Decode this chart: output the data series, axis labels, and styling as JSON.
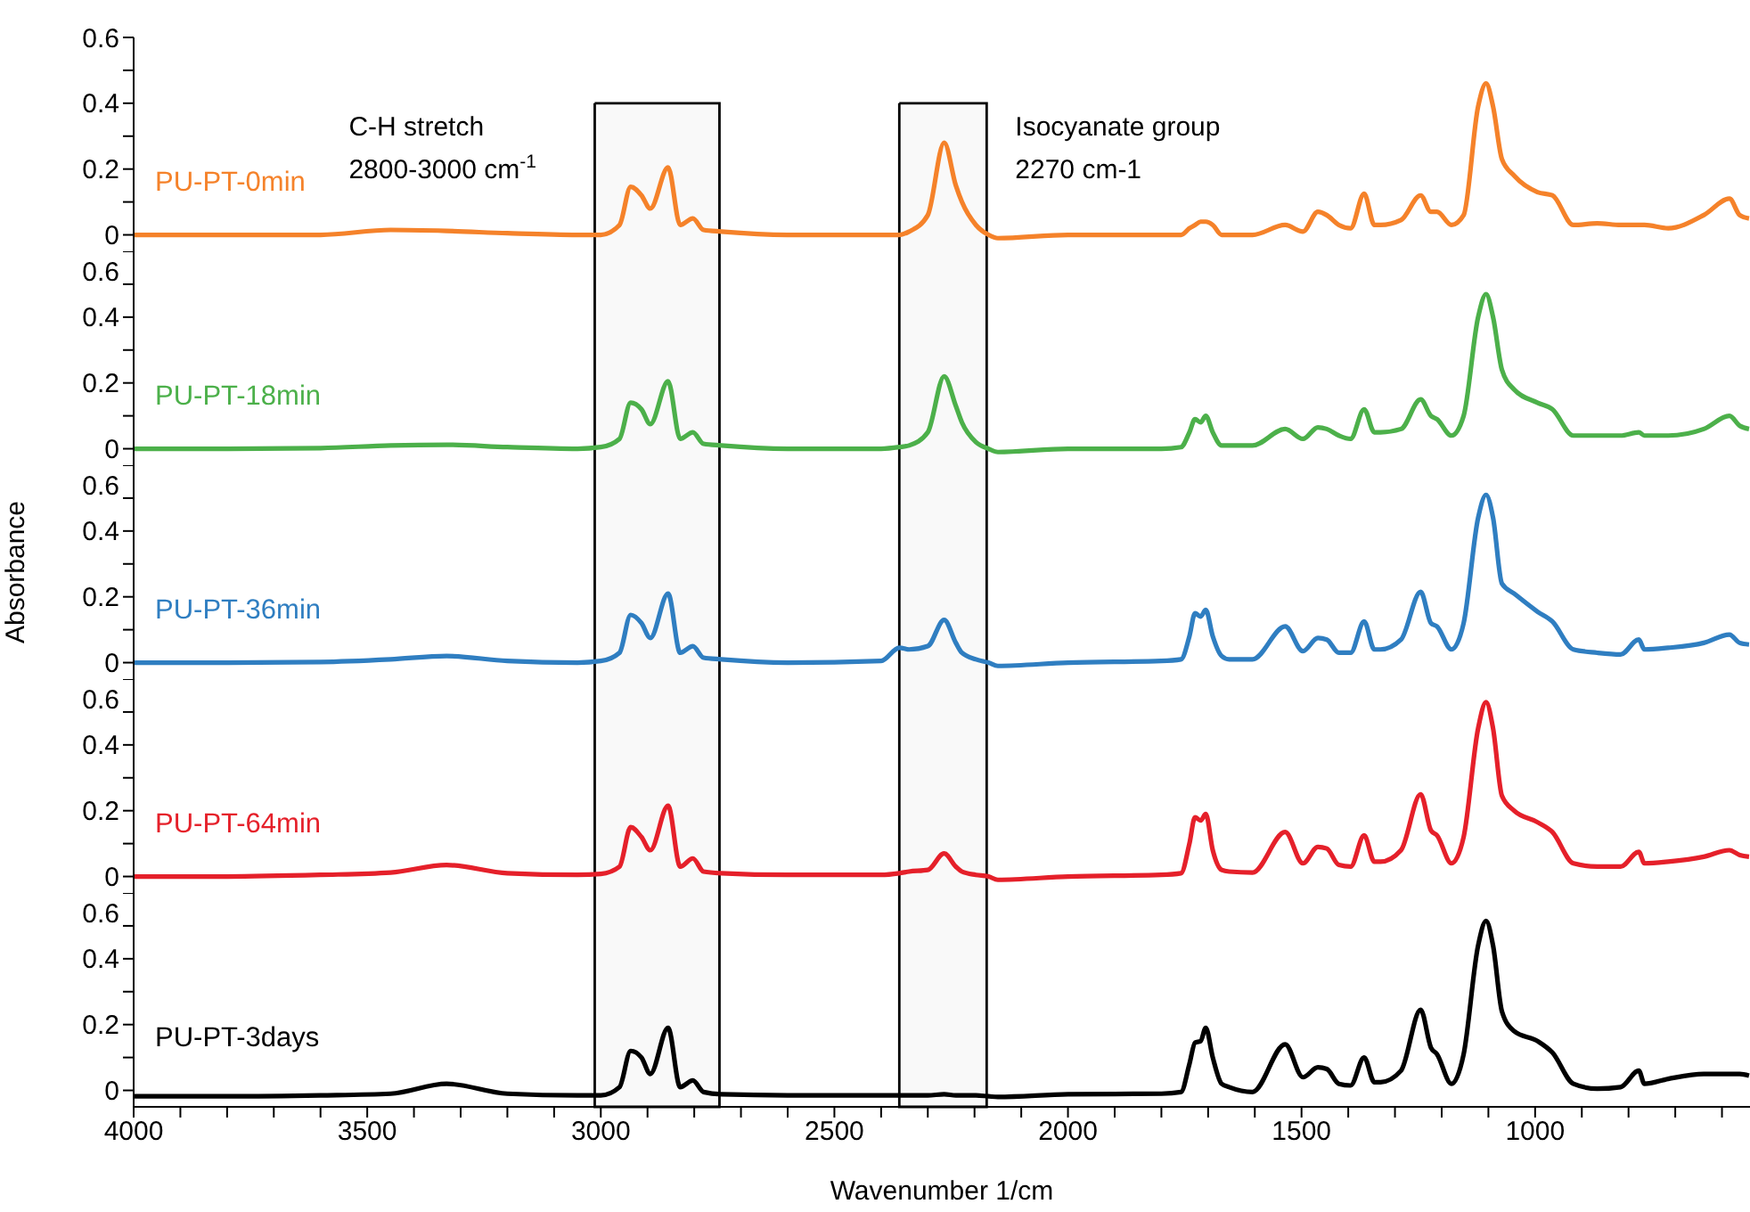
{
  "chart_data": [
    {
      "type": "line",
      "x": [
        4000,
        3800,
        3600,
        3450,
        3330,
        3200,
        3050,
        3000,
        2960,
        2936,
        2913,
        2894,
        2856,
        2830,
        2803,
        2780,
        2742,
        2600,
        2400,
        2361,
        2340,
        2300,
        2265,
        2240,
        2227,
        2197,
        2170,
        2150,
        2000,
        1800,
        1758,
        1740,
        1728,
        1716,
        1705,
        1690,
        1671,
        1655,
        1605,
        1535,
        1497,
        1465,
        1446,
        1420,
        1395,
        1366,
        1344,
        1331,
        1287,
        1245,
        1223,
        1210,
        1179,
        1153,
        1122,
        1105,
        1090,
        1071,
        1045,
        995,
        963,
        918,
        867,
        817,
        778,
        766,
        715,
        639,
        584,
        562,
        542
      ],
      "series": [
        {
          "name": "PU-PT-0min",
          "color": "#f5822a",
          "values": [
            0,
            0,
            0,
            0.015,
            0.012,
            0.005,
            0,
            0,
            0.03,
            0.146,
            0.12,
            0.08,
            0.205,
            0.03,
            0.05,
            0.015,
            0.01,
            0,
            0,
            0,
            0.01,
            0.06,
            0.28,
            0.15,
            0.1,
            0.03,
            0,
            -0.01,
            0,
            0,
            0,
            0.02,
            0.03,
            0.04,
            0.04,
            0.03,
            0,
            0,
            0,
            0.03,
            0.01,
            0.07,
            0.06,
            0.03,
            0.02,
            0.125,
            0.03,
            0.03,
            0.045,
            0.12,
            0.07,
            0.07,
            0.03,
            0.06,
            0.39,
            0.46,
            0.39,
            0.23,
            0.18,
            0.13,
            0.12,
            0.03,
            0.035,
            0.03,
            0.03,
            0.03,
            0.02,
            0.06,
            0.11,
            0.06,
            0.05
          ]
        }
      ],
      "xlim": [
        4000,
        540
      ],
      "ylim": [
        -0.05,
        0.6
      ],
      "yticks": [
        0,
        {
          "value": 0.1,
          "label": null
        },
        0.2,
        {
          "value": 0.3,
          "label": null
        },
        0.4,
        {
          "value": 0.5,
          "label": null
        },
        0.6
      ],
      "tick_labels": "y",
      "grid": false,
      "legend": false,
      "line_style": "solid",
      "marker": "none",
      "bands": [
        {
          "axis": "x",
          "from": 3013,
          "to": 2746,
          "label": "C-H stretch\n2800-3000 cm$^{-1}$"
        },
        {
          "axis": "x",
          "from": 2361,
          "to": 2174,
          "label": "Isocyanate group\n2270 cm-1"
        }
      ]
    },
    {
      "type": "line",
      "x": [
        4000,
        3800,
        3600,
        3450,
        3330,
        3200,
        3050,
        3000,
        2960,
        2936,
        2913,
        2894,
        2856,
        2830,
        2803,
        2780,
        2742,
        2600,
        2400,
        2361,
        2340,
        2300,
        2265,
        2240,
        2227,
        2197,
        2170,
        2150,
        2000,
        1800,
        1758,
        1740,
        1728,
        1716,
        1705,
        1690,
        1671,
        1655,
        1605,
        1535,
        1497,
        1465,
        1446,
        1420,
        1395,
        1366,
        1344,
        1331,
        1287,
        1245,
        1223,
        1210,
        1179,
        1153,
        1122,
        1105,
        1090,
        1071,
        1045,
        995,
        963,
        918,
        867,
        817,
        778,
        766,
        715,
        639,
        584,
        562,
        542
      ],
      "series": [
        {
          "name": "PU-PT-18min",
          "color": "#4cb04a",
          "values": [
            0,
            0,
            0.002,
            0.01,
            0.012,
            0.005,
            0,
            0.005,
            0.03,
            0.14,
            0.12,
            0.075,
            0.205,
            0.03,
            0.05,
            0.015,
            0.01,
            0,
            0,
            0.005,
            0.01,
            0.05,
            0.22,
            0.13,
            0.08,
            0.02,
            0,
            -0.01,
            0,
            0,
            0.005,
            0.05,
            0.09,
            0.08,
            0.1,
            0.05,
            0.01,
            0.01,
            0.01,
            0.06,
            0.03,
            0.065,
            0.06,
            0.04,
            0.03,
            0.12,
            0.05,
            0.05,
            0.06,
            0.15,
            0.1,
            0.09,
            0.04,
            0.1,
            0.4,
            0.47,
            0.4,
            0.24,
            0.18,
            0.14,
            0.12,
            0.04,
            0.04,
            0.04,
            0.05,
            0.04,
            0.04,
            0.06,
            0.1,
            0.07,
            0.06
          ]
        }
      ],
      "xlim": [
        4000,
        540
      ],
      "ylim": [
        -0.05,
        0.6
      ],
      "yticks": [
        0,
        {
          "value": 0.1,
          "label": null
        },
        0.2,
        {
          "value": 0.3,
          "label": null
        },
        0.4,
        {
          "value": 0.5,
          "label": null
        },
        0.6
      ],
      "tick_labels": "y",
      "grid": false,
      "legend": false,
      "line_style": "solid",
      "marker": "none",
      "bands": [
        {
          "axis": "x",
          "from": 3013,
          "to": 2746,
          "label": null
        },
        {
          "axis": "x",
          "from": 2361,
          "to": 2174,
          "label": null
        }
      ]
    },
    {
      "type": "line",
      "ylabel": "Absorbance",
      "x": [
        4000,
        3800,
        3600,
        3450,
        3330,
        3200,
        3050,
        3000,
        2960,
        2936,
        2913,
        2894,
        2856,
        2830,
        2803,
        2780,
        2742,
        2600,
        2400,
        2361,
        2340,
        2300,
        2265,
        2240,
        2227,
        2197,
        2170,
        2150,
        2000,
        1800,
        1758,
        1740,
        1728,
        1716,
        1705,
        1690,
        1671,
        1655,
        1605,
        1535,
        1497,
        1465,
        1446,
        1420,
        1395,
        1366,
        1344,
        1331,
        1287,
        1245,
        1223,
        1210,
        1179,
        1153,
        1122,
        1105,
        1090,
        1071,
        1045,
        995,
        963,
        918,
        867,
        817,
        778,
        766,
        715,
        639,
        584,
        562,
        542
      ],
      "series": [
        {
          "name": "PU-PT-36min",
          "color": "#2f7ec1",
          "values": [
            0,
            0,
            0.002,
            0.01,
            0.02,
            0.005,
            0,
            0.005,
            0.03,
            0.145,
            0.12,
            0.075,
            0.21,
            0.03,
            0.05,
            0.015,
            0.01,
            0,
            0.005,
            0.045,
            0.04,
            0.05,
            0.13,
            0.06,
            0.03,
            0.01,
            0,
            -0.01,
            0,
            0.005,
            0.01,
            0.08,
            0.15,
            0.14,
            0.16,
            0.08,
            0.02,
            0.01,
            0.01,
            0.11,
            0.035,
            0.075,
            0.07,
            0.03,
            0.03,
            0.125,
            0.04,
            0.04,
            0.07,
            0.215,
            0.12,
            0.11,
            0.04,
            0.12,
            0.44,
            0.51,
            0.44,
            0.24,
            0.21,
            0.155,
            0.125,
            0.04,
            0.03,
            0.025,
            0.07,
            0.04,
            0.045,
            0.06,
            0.085,
            0.06,
            0.055
          ]
        }
      ],
      "xlim": [
        4000,
        540
      ],
      "ylim": [
        -0.05,
        0.6
      ],
      "yticks": [
        0,
        {
          "value": 0.1,
          "label": null
        },
        0.2,
        {
          "value": 0.3,
          "label": null
        },
        0.4,
        {
          "value": 0.5,
          "label": null
        },
        0.6
      ],
      "tick_labels": "y",
      "grid": false,
      "legend": false,
      "line_style": "solid",
      "marker": "none",
      "bands": [
        {
          "axis": "x",
          "from": 3013,
          "to": 2746,
          "label": null
        },
        {
          "axis": "x",
          "from": 2361,
          "to": 2174,
          "label": null
        }
      ]
    },
    {
      "type": "line",
      "x": [
        4000,
        3800,
        3600,
        3450,
        3330,
        3200,
        3050,
        3000,
        2960,
        2936,
        2913,
        2894,
        2856,
        2830,
        2803,
        2780,
        2742,
        2600,
        2400,
        2361,
        2340,
        2300,
        2265,
        2240,
        2227,
        2197,
        2170,
        2150,
        2000,
        1800,
        1758,
        1740,
        1728,
        1716,
        1705,
        1690,
        1671,
        1655,
        1605,
        1535,
        1497,
        1465,
        1446,
        1420,
        1395,
        1366,
        1344,
        1331,
        1287,
        1245,
        1223,
        1210,
        1179,
        1153,
        1122,
        1105,
        1090,
        1071,
        1045,
        995,
        963,
        918,
        867,
        817,
        778,
        766,
        715,
        639,
        584,
        562,
        542
      ],
      "series": [
        {
          "name": "PU-PT-64min",
          "color": "#e5202a",
          "values": [
            0,
            0,
            0.005,
            0.012,
            0.035,
            0.01,
            0.005,
            0.008,
            0.03,
            0.15,
            0.12,
            0.08,
            0.215,
            0.03,
            0.055,
            0.015,
            0.01,
            0.005,
            0.005,
            0.01,
            0.015,
            0.02,
            0.07,
            0.03,
            0.015,
            0.005,
            0,
            -0.01,
            0,
            0.005,
            0.01,
            0.1,
            0.18,
            0.17,
            0.19,
            0.08,
            0.02,
            0.015,
            0.012,
            0.135,
            0.04,
            0.09,
            0.085,
            0.035,
            0.03,
            0.125,
            0.045,
            0.045,
            0.08,
            0.25,
            0.14,
            0.125,
            0.04,
            0.12,
            0.45,
            0.53,
            0.45,
            0.245,
            0.2,
            0.165,
            0.135,
            0.04,
            0.03,
            0.03,
            0.075,
            0.04,
            0.045,
            0.06,
            0.08,
            0.065,
            0.06
          ]
        }
      ],
      "xlim": [
        4000,
        540
      ],
      "ylim": [
        -0.05,
        0.6
      ],
      "yticks": [
        0,
        {
          "value": 0.1,
          "label": null
        },
        0.2,
        {
          "value": 0.3,
          "label": null
        },
        0.4,
        {
          "value": 0.5,
          "label": null
        },
        0.6
      ],
      "tick_labels": "y",
      "grid": false,
      "legend": false,
      "line_style": "solid",
      "marker": "none",
      "bands": [
        {
          "axis": "x",
          "from": 3013,
          "to": 2746,
          "label": null
        },
        {
          "axis": "x",
          "from": 2361,
          "to": 2174,
          "label": null
        }
      ]
    },
    {
      "type": "line",
      "xlabel": "Wavenumber 1/cm",
      "x": [
        4000,
        3800,
        3600,
        3450,
        3330,
        3200,
        3050,
        3000,
        2960,
        2936,
        2913,
        2894,
        2856,
        2830,
        2803,
        2780,
        2742,
        2600,
        2400,
        2361,
        2340,
        2300,
        2265,
        2240,
        2227,
        2197,
        2170,
        2150,
        2000,
        1800,
        1758,
        1740,
        1728,
        1716,
        1705,
        1690,
        1671,
        1655,
        1605,
        1535,
        1497,
        1465,
        1446,
        1420,
        1395,
        1366,
        1344,
        1331,
        1287,
        1245,
        1223,
        1210,
        1179,
        1153,
        1122,
        1105,
        1090,
        1071,
        1045,
        995,
        963,
        918,
        867,
        817,
        778,
        766,
        715,
        639,
        584,
        562,
        542
      ],
      "series": [
        {
          "name": "PU-PT-3days",
          "color": "#000000",
          "values": [
            -0.018,
            -0.018,
            -0.015,
            -0.01,
            0.02,
            -0.01,
            -0.015,
            -0.015,
            0.01,
            0.12,
            0.1,
            0.05,
            0.19,
            0.01,
            0.03,
            -0.005,
            -0.012,
            -0.015,
            -0.015,
            -0.015,
            -0.015,
            -0.015,
            -0.012,
            -0.015,
            -0.015,
            -0.015,
            -0.018,
            -0.02,
            -0.012,
            -0.01,
            -0.005,
            0.08,
            0.145,
            0.15,
            0.19,
            0.1,
            0.02,
            0.01,
            -0.005,
            0.14,
            0.04,
            0.07,
            0.065,
            0.02,
            0.015,
            0.1,
            0.025,
            0.025,
            0.06,
            0.245,
            0.13,
            0.11,
            0.02,
            0.11,
            0.44,
            0.515,
            0.44,
            0.24,
            0.18,
            0.15,
            0.115,
            0.02,
            0.005,
            0.01,
            0.06,
            0.02,
            0.035,
            0.05,
            0.05,
            0.05,
            0.045
          ]
        }
      ],
      "xlim": [
        4000,
        540
      ],
      "xticks": [
        4000,
        {
          "value": 3900,
          "label": null
        },
        {
          "value": 3800,
          "label": null
        },
        {
          "value": 3700,
          "label": null
        },
        {
          "value": 3600,
          "label": null
        },
        3500,
        {
          "value": 3400,
          "label": null
        },
        {
          "value": 3300,
          "label": null
        },
        {
          "value": 3200,
          "label": null
        },
        {
          "value": 3100,
          "label": null
        },
        3000,
        {
          "value": 2900,
          "label": null
        },
        {
          "value": 2800,
          "label": null
        },
        {
          "value": 2700,
          "label": null
        },
        {
          "value": 2600,
          "label": null
        },
        2500,
        {
          "value": 2400,
          "label": null
        },
        {
          "value": 2300,
          "label": null
        },
        {
          "value": 2200,
          "label": null
        },
        {
          "value": 2100,
          "label": null
        },
        2000,
        {
          "value": 1900,
          "label": null
        },
        {
          "value": 1800,
          "label": null
        },
        {
          "value": 1700,
          "label": null
        },
        {
          "value": 1600,
          "label": null
        },
        1500,
        {
          "value": 1400,
          "label": null
        },
        {
          "value": 1300,
          "label": null
        },
        {
          "value": 1200,
          "label": null
        },
        {
          "value": 1100,
          "label": null
        },
        1000,
        {
          "value": 900,
          "label": null
        },
        {
          "value": 800,
          "label": null
        },
        {
          "value": 700,
          "label": null
        },
        {
          "value": 600,
          "label": null
        }
      ],
      "ylim": [
        -0.05,
        0.6
      ],
      "yticks": [
        0,
        {
          "value": 0.1,
          "label": null
        },
        0.2,
        {
          "value": 0.3,
          "label": null
        },
        0.4,
        {
          "value": 0.5,
          "label": null
        },
        0.6
      ],
      "grid": false,
      "legend": false,
      "line_style": "solid",
      "marker": "none",
      "bands": [
        {
          "axis": "x",
          "from": 3013,
          "to": 2746,
          "label": null
        },
        {
          "axis": "x",
          "from": 2361,
          "to": 2174,
          "label": null
        }
      ]
    }
  ]
}
